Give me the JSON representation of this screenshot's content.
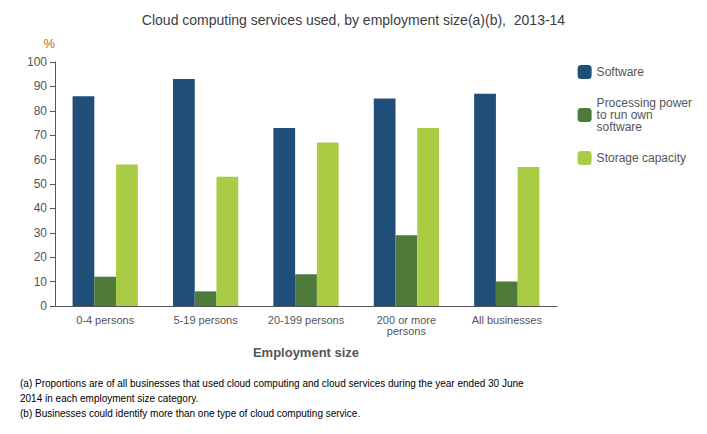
{
  "chart_data": {
    "type": "bar",
    "title": "Cloud computing services used, by employment size(a)(b),  2013-14",
    "ylabel": "%",
    "xlabel": "Employment size",
    "categories": [
      "0-4 persons",
      "5-19 persons",
      "20-199 persons",
      "200 or more\npersons",
      "All businesses"
    ],
    "series": [
      {
        "name": "Software",
        "color": "#1F4E79",
        "values": [
          86,
          93,
          73,
          85,
          87
        ]
      },
      {
        "name": "Processing power\nto run own\nsoftware",
        "color": "#4E7A3A",
        "values": [
          12,
          6,
          13,
          29,
          10
        ]
      },
      {
        "name": "Storage capacity",
        "color": "#AACC44",
        "values": [
          58,
          53,
          67,
          73,
          57
        ]
      }
    ],
    "ylim": [
      0,
      100
    ],
    "yticks": [
      0,
      10,
      20,
      30,
      40,
      50,
      60,
      70,
      80,
      90,
      100
    ],
    "grid": false,
    "legend": "right",
    "annotations": [
      "(a) Proportions are of all businesses that used cloud computing and cloud services during the year ended 30 June",
      "2014 in each employment size category.",
      "(b) Businesses could identify more than one type of cloud computing service."
    ]
  }
}
